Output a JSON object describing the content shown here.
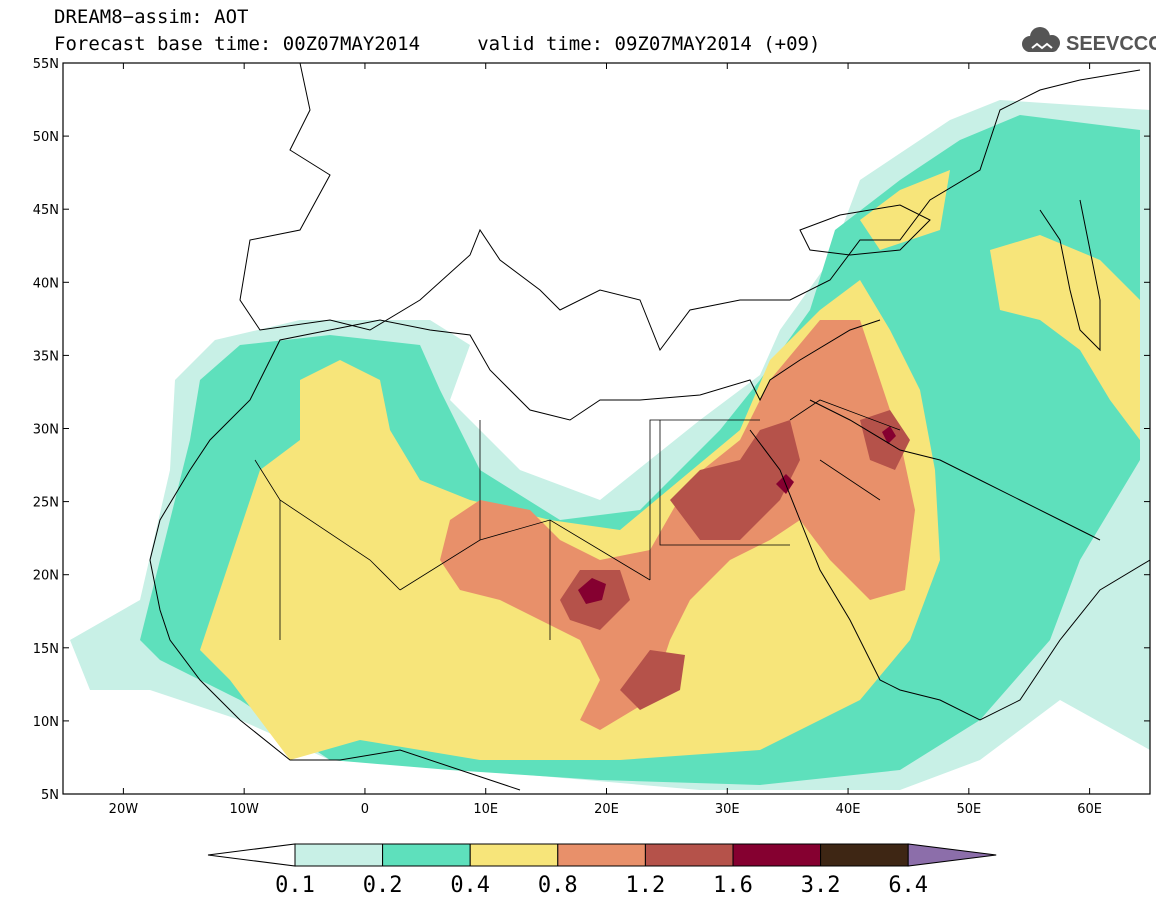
{
  "header": {
    "title_line1": "DREAM8−assim: AOT",
    "title_line2": "Forecast base time: 00Z07MAY2014     valid time: 09Z07MAY2014 (+09)",
    "logo_text": "SEEVCCC",
    "logo_icon": "cloud-icon"
  },
  "map": {
    "lon_range": [
      -25,
      65
    ],
    "lat_range": [
      5,
      55
    ],
    "lat_ticks": [
      "55N",
      "50N",
      "45N",
      "40N",
      "35N",
      "30N",
      "25N",
      "20N",
      "15N",
      "10N",
      "5N"
    ],
    "lon_ticks": [
      "20W",
      "10W",
      "0",
      "10E",
      "20E",
      "30E",
      "40E",
      "50E",
      "60E"
    ],
    "lat_tick_values": [
      55,
      50,
      45,
      40,
      35,
      30,
      25,
      20,
      15,
      10,
      5
    ],
    "lon_tick_values": [
      -20,
      -10,
      0,
      10,
      20,
      30,
      40,
      50,
      60
    ]
  },
  "colorbar": {
    "labels": [
      "0.1",
      "0.2",
      "0.4",
      "0.8",
      "1.2",
      "1.6",
      "3.2",
      "6.4"
    ],
    "colors": [
      "#ffffff",
      "#c8f0e6",
      "#5ee0bc",
      "#f7e57a",
      "#e8906a",
      "#b5524a",
      "#850030",
      "#3e2614",
      "#8c6eaa"
    ]
  }
}
